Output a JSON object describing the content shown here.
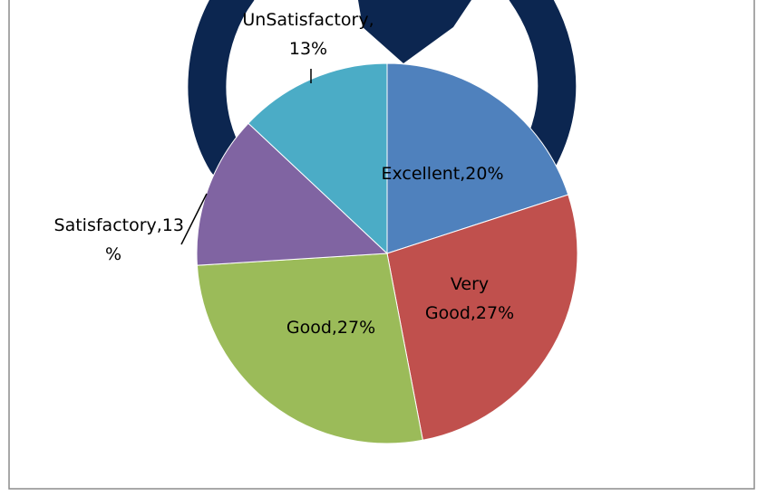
{
  "chart_data": {
    "type": "pie",
    "values": [
      20,
      27,
      27,
      13,
      13
    ],
    "value_labels": [
      "Excellent,20%",
      "Very\nGood,27%",
      "Good,27%",
      "Satisfactory,13\n%",
      "UnSatisfactory,\n13%"
    ],
    "colors": [
      "#4f81bd",
      "#c0504d",
      "#9bbb59",
      "#8064a2",
      "#4bacc6"
    ]
  }
}
